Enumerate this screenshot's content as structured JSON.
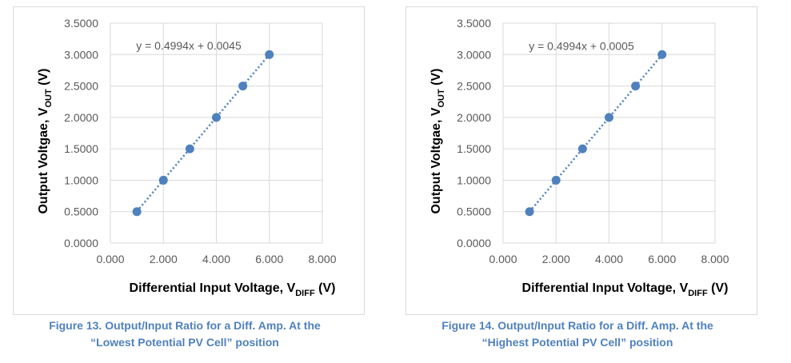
{
  "chart_data": [
    {
      "type": "scatter",
      "trendline": "linear",
      "equation": "y = 0.4994x + 0.0045",
      "x": [
        1,
        2,
        3,
        4,
        5,
        6
      ],
      "y": [
        0.5,
        1.0,
        1.5,
        2.0,
        2.5,
        3.0
      ],
      "xlim": [
        0,
        8
      ],
      "ylim": [
        0,
        3.5
      ],
      "xticks": [
        "0.000",
        "2.000",
        "4.000",
        "6.000",
        "8.000"
      ],
      "yticks": [
        "0.0000",
        "0.5000",
        "1.0000",
        "1.5000",
        "2.0000",
        "2.5000",
        "3.0000",
        "3.5000"
      ],
      "xlabel": {
        "main": "Differential Input Voltage, V",
        "sub": "DIFF",
        "unit": " (V)"
      },
      "ylabel": {
        "main": "Output Voltgae, V",
        "sub": "OUT",
        "unit": " (V)"
      },
      "grid": true,
      "marker_color": "#4f81bd",
      "trend_color": "#4f81bd",
      "caption": [
        "Figure 13.  Output/Input Ratio for a Diff. Amp. At the",
        "“Lowest Potential PV Cell” position"
      ]
    },
    {
      "type": "scatter",
      "trendline": "linear",
      "equation": "y = 0.4994x + 0.0005",
      "x": [
        1,
        2,
        3,
        4,
        5,
        6
      ],
      "y": [
        0.5,
        1.0,
        1.5,
        2.0,
        2.5,
        3.0
      ],
      "xlim": [
        0,
        8
      ],
      "ylim": [
        0,
        3.5
      ],
      "xticks": [
        "0.000",
        "2.000",
        "4.000",
        "6.000",
        "8.000"
      ],
      "yticks": [
        "0.0000",
        "0.5000",
        "1.0000",
        "1.5000",
        "2.0000",
        "2.5000",
        "3.0000",
        "3.5000"
      ],
      "xlabel": {
        "main": "Differential Input Voltage, V",
        "sub": "DIFF",
        "unit": " (V)"
      },
      "ylabel": {
        "main": "Output Voltgae, V",
        "sub": "OUT",
        "unit": " (V)"
      },
      "grid": true,
      "marker_color": "#4f81bd",
      "trend_color": "#4f81bd",
      "caption": [
        "Figure 14.  Output/Input Ratio for a Diff. Amp. At the",
        "“Highest Potential PV Cell” position"
      ]
    }
  ]
}
